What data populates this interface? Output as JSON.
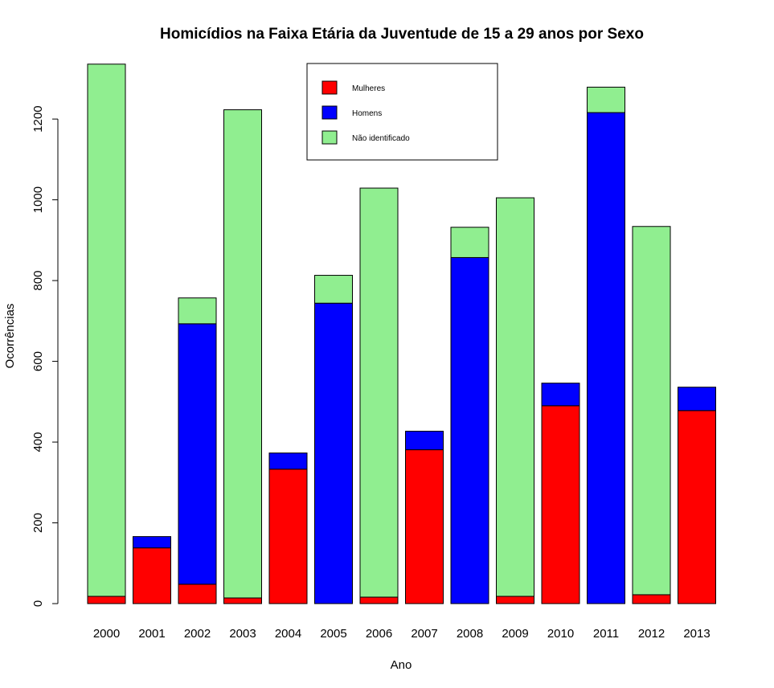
{
  "chart_data": {
    "type": "bar",
    "stacked": true,
    "title": "Homicídios na Faixa Etária da Juventude de 15 a 29 anos por Sexo",
    "xlabel": "Ano",
    "ylabel": "Ocorrências",
    "categories": [
      "2000",
      "2001",
      "2002",
      "2003",
      "2004",
      "2005",
      "2006",
      "2007",
      "2008",
      "2009",
      "2010",
      "2011",
      "2012",
      "2013"
    ],
    "series": [
      {
        "name": "Mulheres",
        "color": "#ff0000",
        "values": [
          18,
          138,
          48,
          14,
          333,
          0,
          16,
          381,
          0,
          18,
          490,
          0,
          22,
          478
        ]
      },
      {
        "name": "Homens",
        "color": "#0000ff",
        "values": [
          0,
          28,
          645,
          0,
          40,
          744,
          0,
          46,
          857,
          0,
          56,
          1216,
          0,
          58
        ]
      },
      {
        "name": "Não identificado",
        "color": "#90ee90",
        "values": [
          1318,
          0,
          64,
          1209,
          0,
          69,
          1013,
          0,
          75,
          987,
          0,
          63,
          912,
          0
        ]
      }
    ],
    "yticks": [
      "0",
      "200",
      "400",
      "600",
      "800",
      "1000",
      "1200"
    ],
    "ylim": [
      0,
      1336
    ],
    "legend_position": "top-center"
  }
}
